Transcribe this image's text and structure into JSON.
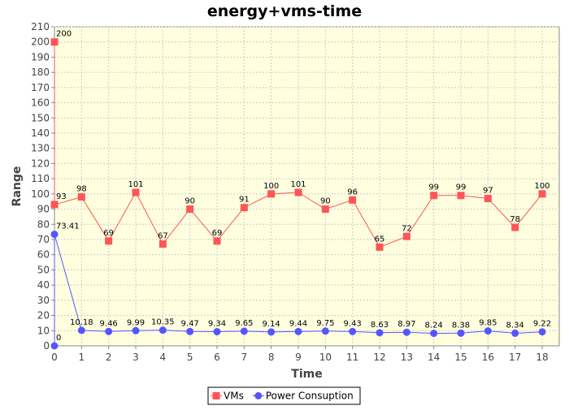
{
  "chart_data": {
    "type": "line",
    "title": "energy+vms-time",
    "xlabel": "Time",
    "ylabel": "Range",
    "x": [
      0,
      1,
      2,
      3,
      4,
      5,
      6,
      7,
      8,
      9,
      10,
      11,
      12,
      13,
      14,
      15,
      16,
      17,
      18
    ],
    "xlim": [
      0,
      18
    ],
    "ylim": [
      0,
      210
    ],
    "yticks_step": 10,
    "grid": true,
    "legend_position": "bottom-center",
    "colors": {
      "plot_background": "#ffffe0",
      "grid": "#cccccc",
      "axis": "#888888"
    },
    "series": [
      {
        "name": "VMs",
        "color": "#ff5555",
        "marker": "square",
        "points": [
          {
            "x": 0,
            "y": 200,
            "label": "200"
          },
          {
            "x": 0,
            "y": 93,
            "label": "93"
          },
          {
            "x": 1,
            "y": 98,
            "label": "98"
          },
          {
            "x": 2,
            "y": 69,
            "label": "69"
          },
          {
            "x": 3,
            "y": 101,
            "label": "101"
          },
          {
            "x": 4,
            "y": 67,
            "label": "67"
          },
          {
            "x": 5,
            "y": 90,
            "label": "90"
          },
          {
            "x": 6,
            "y": 69,
            "label": "69"
          },
          {
            "x": 7,
            "y": 91,
            "label": "91"
          },
          {
            "x": 8,
            "y": 100,
            "label": "100"
          },
          {
            "x": 9,
            "y": 101,
            "label": "101"
          },
          {
            "x": 10,
            "y": 90,
            "label": "90"
          },
          {
            "x": 11,
            "y": 96,
            "label": "96"
          },
          {
            "x": 12,
            "y": 65,
            "label": "65"
          },
          {
            "x": 13,
            "y": 72,
            "label": "72"
          },
          {
            "x": 14,
            "y": 99,
            "label": "99"
          },
          {
            "x": 15,
            "y": 99,
            "label": "99"
          },
          {
            "x": 16,
            "y": 97,
            "label": "97"
          },
          {
            "x": 17,
            "y": 78,
            "label": "78"
          },
          {
            "x": 18,
            "y": 100,
            "label": "100"
          }
        ]
      },
      {
        "name": "Power Consuption",
        "color": "#5555ff",
        "marker": "circle",
        "points": [
          {
            "x": 0,
            "y": 0,
            "label": "0"
          },
          {
            "x": 0,
            "y": 73.41,
            "label": "73.41"
          },
          {
            "x": 1,
            "y": 10.18,
            "label": "10.18"
          },
          {
            "x": 2,
            "y": 9.46,
            "label": "9.46"
          },
          {
            "x": 3,
            "y": 9.99,
            "label": "9.99"
          },
          {
            "x": 4,
            "y": 10.35,
            "label": "10.35"
          },
          {
            "x": 5,
            "y": 9.47,
            "label": "9.47"
          },
          {
            "x": 6,
            "y": 9.34,
            "label": "9.34"
          },
          {
            "x": 7,
            "y": 9.65,
            "label": "9.65"
          },
          {
            "x": 8,
            "y": 9.14,
            "label": "9.14"
          },
          {
            "x": 9,
            "y": 9.44,
            "label": "9.44"
          },
          {
            "x": 10,
            "y": 9.75,
            "label": "9.75"
          },
          {
            "x": 11,
            "y": 9.43,
            "label": "9.43"
          },
          {
            "x": 12,
            "y": 8.63,
            "label": "8.63"
          },
          {
            "x": 13,
            "y": 8.97,
            "label": "8.97"
          },
          {
            "x": 14,
            "y": 8.24,
            "label": "8.24"
          },
          {
            "x": 15,
            "y": 8.38,
            "label": "8.38"
          },
          {
            "x": 16,
            "y": 9.85,
            "label": "9.85"
          },
          {
            "x": 17,
            "y": 8.34,
            "label": "8.34"
          },
          {
            "x": 18,
            "y": 9.22,
            "label": "9.22"
          }
        ]
      }
    ]
  }
}
